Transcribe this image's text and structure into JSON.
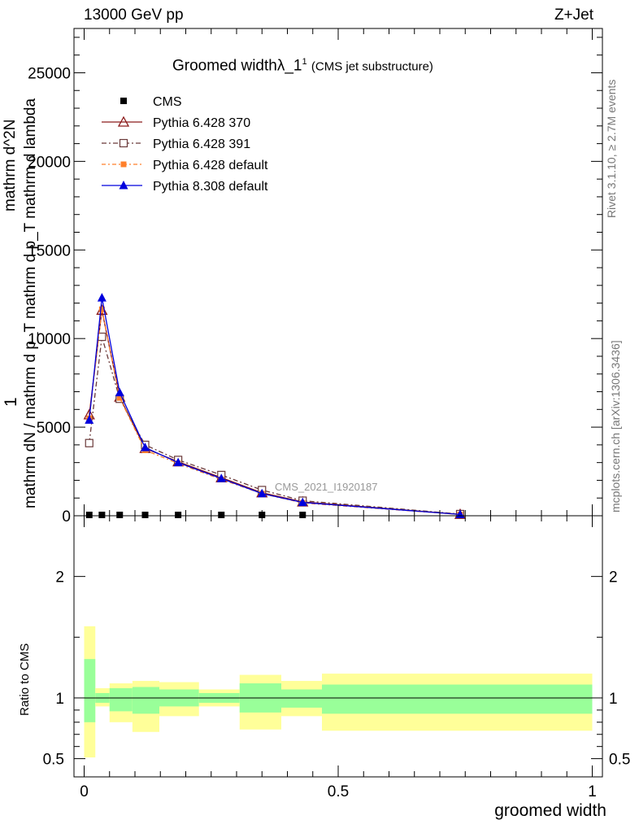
{
  "header": {
    "energy_label": "13000 GeV pp",
    "process_label": "Z+Jet",
    "title_main": "Groomed widthλ_1",
    "title_sup": "1",
    "title_sub": "(CMS jet substructure)"
  },
  "side": {
    "rivet": "Rivet 3.1.10, ≥ 2.7M events",
    "mcplots": "mcplots.cern.ch [arXiv:1306.3436]"
  },
  "analysis_label": "CMS_2021_I1920187",
  "y_axis_label_lines": [
    "1",
    "mathrm d^2N",
    "mathrm dN / mathrm d p_T mathrm d p_T mathrm d lambda"
  ],
  "ratio_ylabel": "Ratio to CMS",
  "xlabel": "groomed width",
  "colors": {
    "cms": "#000000",
    "p370": "#8b1a1a",
    "p391": "#6b3a3a",
    "pdefault": "#ff7f2a",
    "p8": "#0000dd",
    "band_inner": "#99ff99",
    "band_outer": "#ffff99"
  },
  "chart_data": [
    {
      "type": "line",
      "xlim": [
        -0.02,
        1.02
      ],
      "ylim": [
        0,
        27500
      ],
      "yticks": [
        {
          "value": 0,
          "label": "0"
        },
        {
          "value": 5000,
          "label": "5000"
        },
        {
          "value": 10000,
          "label": "10000"
        },
        {
          "value": 15000,
          "label": "15000"
        },
        {
          "value": 20000,
          "label": "20000"
        },
        {
          "value": 25000,
          "label": "25000"
        }
      ],
      "legend_position": "top-left",
      "series": [
        {
          "name": "CMS",
          "key": "cms",
          "style": "square",
          "x": [
            0.01,
            0.035,
            0.07,
            0.12,
            0.185,
            0.27,
            0.35,
            0.43
          ],
          "values": [
            15,
            15,
            15,
            15,
            15,
            15,
            15,
            15
          ]
        },
        {
          "name": "Pythia 6.428 370",
          "key": "p370",
          "style": "triangle-open",
          "x": [
            0.01,
            0.035,
            0.07,
            0.12,
            0.185,
            0.27,
            0.35,
            0.43,
            0.74
          ],
          "values": [
            5700,
            11600,
            6700,
            3800,
            3050,
            2150,
            1300,
            780,
            80
          ]
        },
        {
          "name": "Pythia 6.428 391",
          "key": "p391",
          "style": "square-open",
          "x": [
            0.01,
            0.035,
            0.07,
            0.12,
            0.185,
            0.27,
            0.35,
            0.43,
            0.74
          ],
          "values": [
            4100,
            10100,
            6600,
            4000,
            3150,
            2300,
            1450,
            850,
            95
          ]
        },
        {
          "name": "Pythia 6.428 default",
          "key": "pdefault",
          "style": "square-small",
          "x": [
            0.01,
            0.035,
            0.07,
            0.12,
            0.185,
            0.27,
            0.35,
            0.43,
            0.74
          ],
          "values": [
            5500,
            11650,
            6650,
            3700,
            2950,
            2050,
            1250,
            720,
            70
          ]
        },
        {
          "name": "Pythia 8.308 default",
          "key": "p8",
          "style": "triangle",
          "x": [
            0.01,
            0.035,
            0.07,
            0.12,
            0.185,
            0.27,
            0.35,
            0.43,
            0.74
          ],
          "values": [
            5400,
            12300,
            6950,
            3850,
            3000,
            2100,
            1250,
            750,
            75
          ]
        }
      ]
    },
    {
      "type": "area",
      "ylabel": "Ratio to CMS",
      "xlim": [
        -0.02,
        1.02
      ],
      "ylim": [
        0.35,
        2.5
      ],
      "yticks": [
        {
          "value": 0.5,
          "label": "0.5"
        },
        {
          "value": 1,
          "label": "1"
        },
        {
          "value": 2,
          "label": "2"
        }
      ],
      "xticks": [
        {
          "value": 0,
          "label": "0"
        },
        {
          "value": 0.5,
          "label": "0.5"
        },
        {
          "value": 1,
          "label": "1"
        }
      ],
      "bins": [
        {
          "x0": 0.0,
          "x1": 0.022,
          "outer": [
            0.51,
            1.59
          ],
          "inner": [
            0.8,
            1.32
          ]
        },
        {
          "x0": 0.022,
          "x1": 0.05,
          "outer": [
            0.93,
            1.08
          ],
          "inner": [
            0.96,
            1.04
          ]
        },
        {
          "x0": 0.05,
          "x1": 0.095,
          "outer": [
            0.8,
            1.12
          ],
          "inner": [
            0.89,
            1.08
          ]
        },
        {
          "x0": 0.095,
          "x1": 0.148,
          "outer": [
            0.72,
            1.14
          ],
          "inner": [
            0.87,
            1.09
          ]
        },
        {
          "x0": 0.148,
          "x1": 0.226,
          "outer": [
            0.85,
            1.13
          ],
          "inner": [
            0.93,
            1.07
          ]
        },
        {
          "x0": 0.226,
          "x1": 0.306,
          "outer": [
            0.93,
            1.07
          ],
          "inner": [
            0.96,
            1.04
          ]
        },
        {
          "x0": 0.306,
          "x1": 0.388,
          "outer": [
            0.74,
            1.19
          ],
          "inner": [
            0.88,
            1.12
          ]
        },
        {
          "x0": 0.388,
          "x1": 0.468,
          "outer": [
            0.85,
            1.14
          ],
          "inner": [
            0.92,
            1.07
          ]
        },
        {
          "x0": 0.468,
          "x1": 1.0,
          "outer": [
            0.73,
            1.2
          ],
          "inner": [
            0.87,
            1.11
          ]
        }
      ]
    }
  ]
}
